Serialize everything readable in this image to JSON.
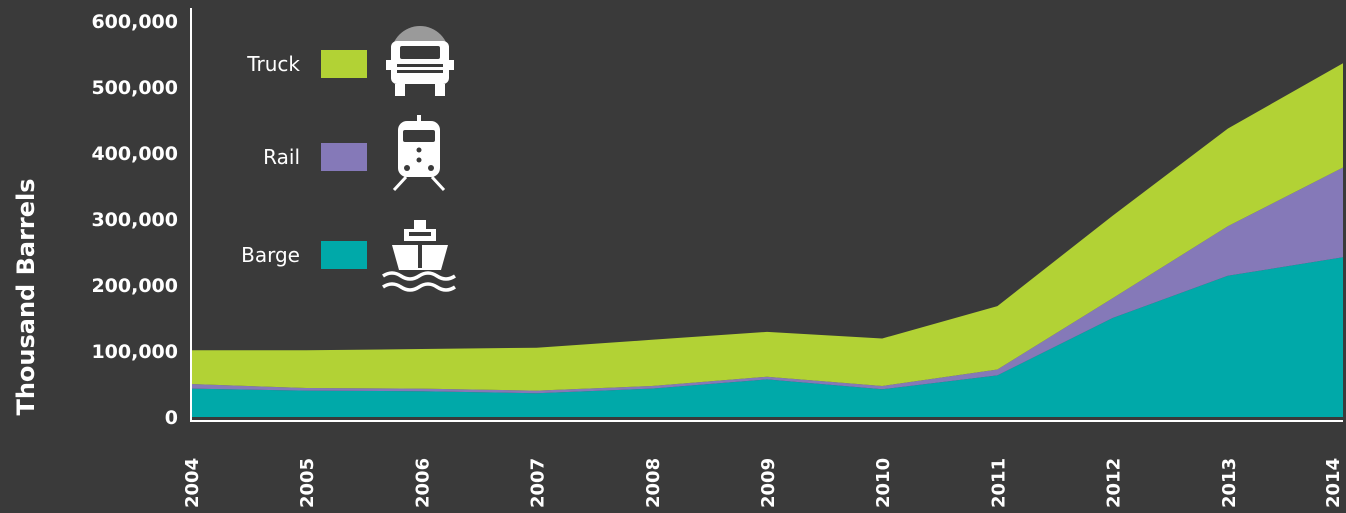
{
  "chart_data": {
    "type": "area",
    "stacked": true,
    "ylabel": "Thousand Barrels",
    "xlabel": "",
    "title": "",
    "x": [
      "2004",
      "2005",
      "2006",
      "2007",
      "2008",
      "2009",
      "2010",
      "2011",
      "2012",
      "2013",
      "2014"
    ],
    "ylim": [
      0,
      600000
    ],
    "yticks": [
      "0",
      "100,000",
      "200,000",
      "300,000",
      "400,000",
      "500,000",
      "600,000"
    ],
    "grid": false,
    "legend_position": "top-left",
    "series": [
      {
        "name": "Barge",
        "color": "#00a9a9",
        "icon": "ship-icon",
        "values": [
          43000,
          40000,
          39000,
          36000,
          43000,
          57000,
          42000,
          63000,
          150000,
          214000,
          242000
        ]
      },
      {
        "name": "Rail",
        "color": "#8579b8",
        "icon": "train-icon",
        "values": [
          7000,
          4000,
          4000,
          4000,
          4000,
          4000,
          5000,
          9000,
          30000,
          75000,
          136000
        ]
      },
      {
        "name": "Truck",
        "color": "#b2d235",
        "icon": "truck-icon",
        "values": [
          51000,
          57000,
          60000,
          65000,
          70000,
          68000,
          72000,
          96000,
          125000,
          148000,
          158000
        ]
      }
    ]
  }
}
